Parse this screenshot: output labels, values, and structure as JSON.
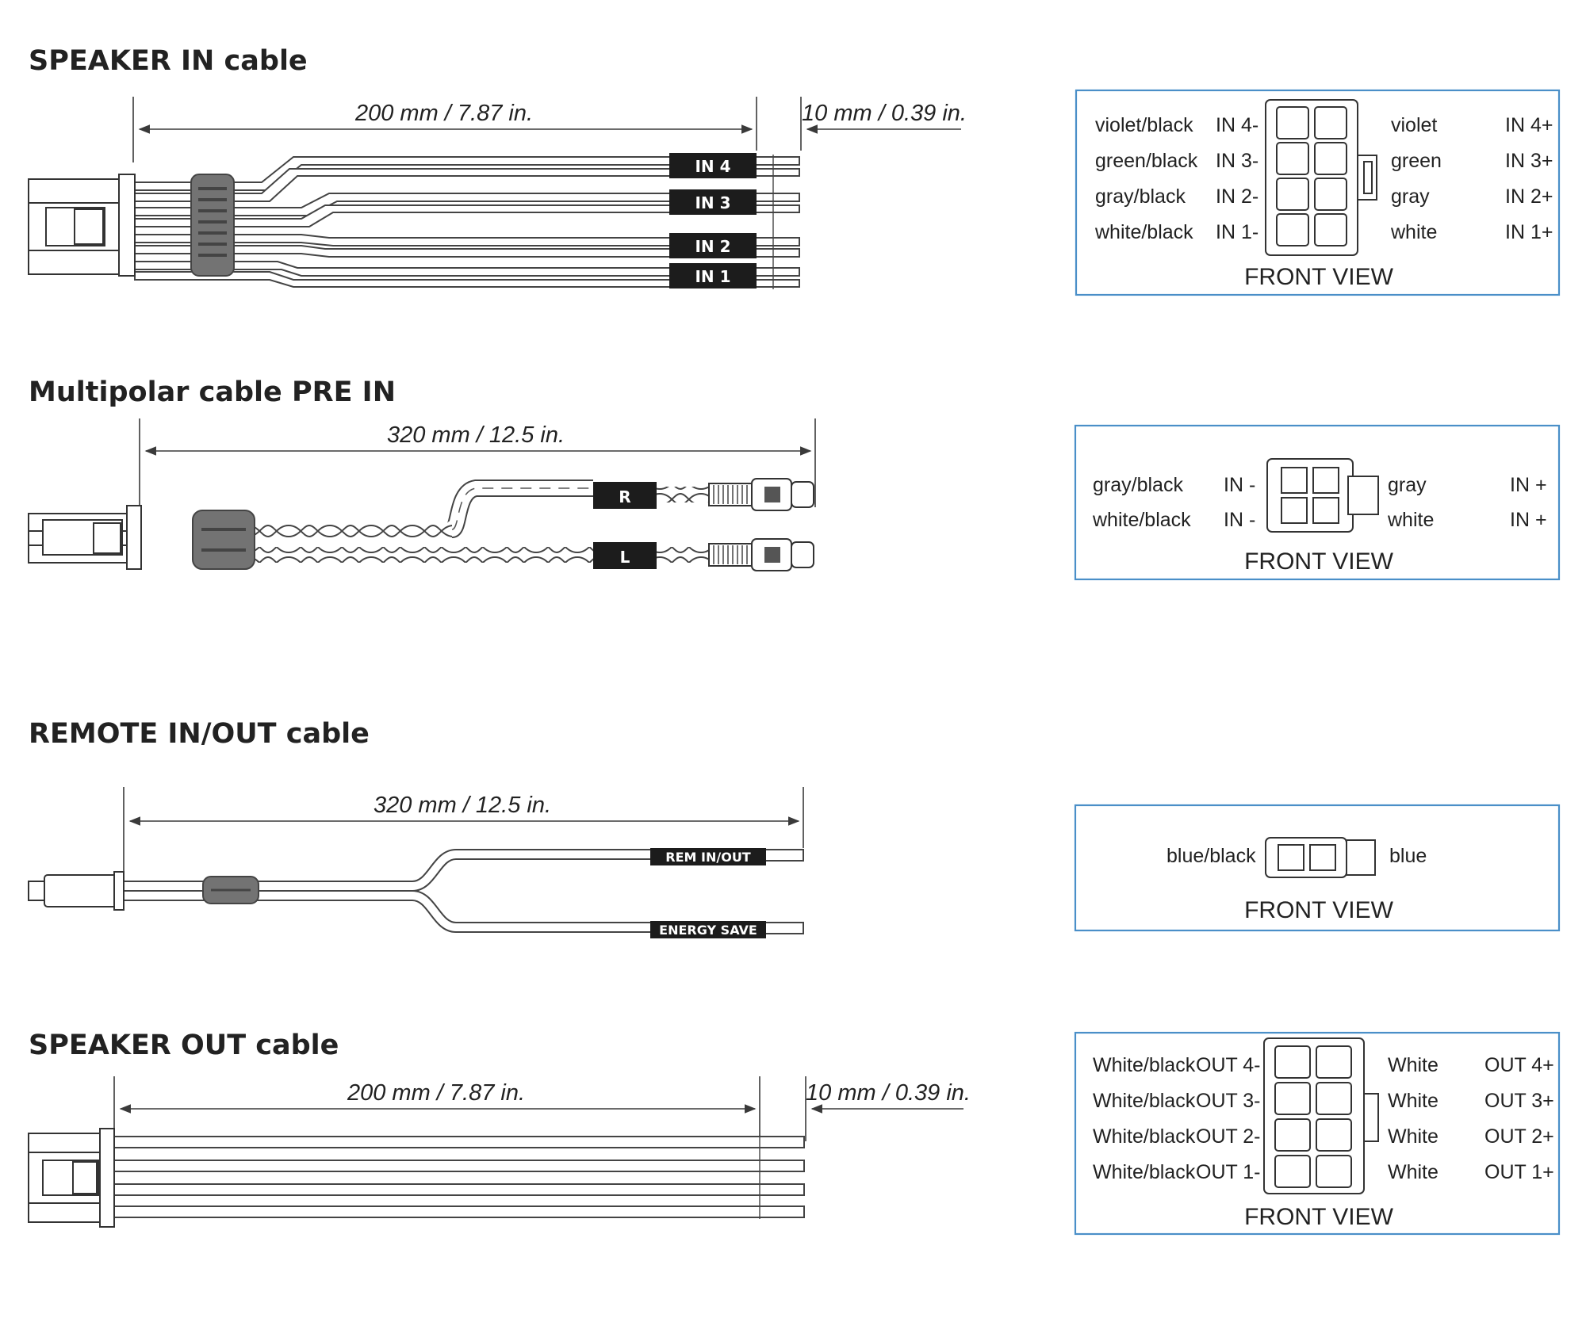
{
  "sections": [
    {
      "title": "SPEAKER IN cable",
      "dim_main": "200 mm / 7.87 in.",
      "dim_tip": "10 mm / 0.39 in.",
      "wire_tags": [
        "IN 4",
        "IN 3",
        "IN 2",
        "IN 1"
      ],
      "front_view": {
        "left_colors": [
          "violet/black",
          "green/black",
          "gray/black",
          "white/black"
        ],
        "left_pins": [
          "IN 4-",
          "IN 3-",
          "IN 2-",
          "IN 1-"
        ],
        "right_colors": [
          "violet",
          "green",
          "gray",
          "white"
        ],
        "right_pins": [
          "IN 4+",
          "IN 3+",
          "IN 2+",
          "IN 1+"
        ],
        "label": "FRONT VIEW"
      }
    },
    {
      "title": "Multipolar cable PRE IN",
      "dim_main": "320 mm / 12.5 in.",
      "wire_tags": [
        "R",
        "L"
      ],
      "front_view": {
        "left_colors": [
          "gray/black",
          "white/black"
        ],
        "left_pins": [
          "IN -",
          "IN -"
        ],
        "right_colors": [
          "gray",
          "white"
        ],
        "right_pins": [
          "IN +",
          "IN +"
        ],
        "label": "FRONT VIEW"
      }
    },
    {
      "title": "REMOTE IN/OUT cable",
      "dim_main": "320 mm / 12.5 in.",
      "wire_tags": [
        "REM IN/OUT",
        "ENERGY SAVE"
      ],
      "front_view": {
        "left_colors": [
          "blue/black"
        ],
        "right_colors": [
          "blue"
        ],
        "label": "FRONT VIEW"
      }
    },
    {
      "title": "SPEAKER OUT cable",
      "dim_main": "200 mm / 7.87 in.",
      "dim_tip": "10 mm / 0.39 in.",
      "front_view": {
        "left_colors": [
          "White/black",
          "White/black",
          "White/black",
          "White/black"
        ],
        "left_pins": [
          "OUT 4-",
          "OUT 3-",
          "OUT 2-",
          "OUT 1-"
        ],
        "right_colors": [
          "White",
          "White",
          "White",
          "White"
        ],
        "right_pins": [
          "OUT 4+",
          "OUT 3+",
          "OUT 2+",
          "OUT 1+"
        ],
        "label": "FRONT VIEW"
      }
    }
  ],
  "colors": {
    "frame": "#4a8fc8",
    "ferrite": "#737373",
    "tag": "#1c1c1c",
    "line": "#3a3a3a"
  }
}
